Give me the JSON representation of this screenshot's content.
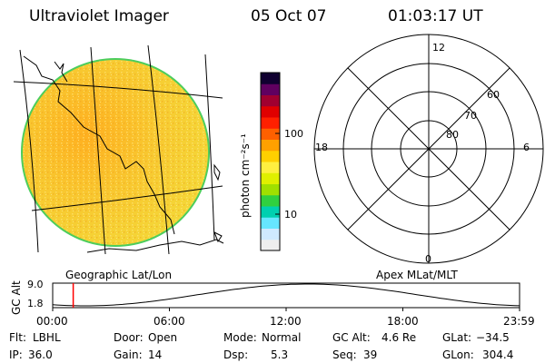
{
  "header": {
    "instrument": "Ultraviolet Imager",
    "date": "05 Oct 07",
    "time": "01:03:17 UT"
  },
  "colorbar": {
    "unit_label": "photon cm⁻²s⁻¹",
    "tick_100": "100",
    "tick_10": "10",
    "colors": [
      "#eeeeee",
      "#cfe9ff",
      "#66e6ff",
      "#00d0b0",
      "#30d040",
      "#a0e000",
      "#e0f000",
      "#ffef40",
      "#ffd000",
      "#ffa000",
      "#ff6000",
      "#ff2000",
      "#e00000",
      "#a00030",
      "#600060",
      "#100030"
    ]
  },
  "geo_map": {
    "caption": "Geographic Lat/Lon",
    "disk_color": "#f7c630",
    "rim_color": "#4ccd5c"
  },
  "polar_plot": {
    "caption": "Apex MLat/MLT",
    "mlt_top": "12",
    "mlt_left": "18",
    "mlt_right": "6",
    "mlt_bottom": "0",
    "lat_60": "60",
    "lat_70": "70",
    "lat_80": "80"
  },
  "altitude_plot": {
    "axis_label": "GC Alt",
    "y_max": "9.0",
    "y_min": "1.8",
    "x_ticks": [
      "00:00",
      "06:00",
      "12:00",
      "18:00",
      "23:59"
    ],
    "marker_time": "01:03:17",
    "marker_color": "#ff0000"
  },
  "footer": {
    "flt_label": "Flt:",
    "flt_value": "LBHL",
    "door_label": "Door:",
    "door_value": "Open",
    "mode_label": "Mode:",
    "mode_value": "Normal",
    "gcalt_label": "GC Alt:",
    "gcalt_value": "4.6 Re",
    "glat_label": "GLat:",
    "glat_value": "−34.5",
    "ip_label": "IP:",
    "ip_value": "36.0",
    "gain_label": "Gain:",
    "gain_value": "14",
    "dsp_label": "Dsp:",
    "dsp_value": "5.3",
    "seq_label": "Seq:",
    "seq_value": "39",
    "glon_label": "GLon:",
    "glon_value": "304.4"
  }
}
